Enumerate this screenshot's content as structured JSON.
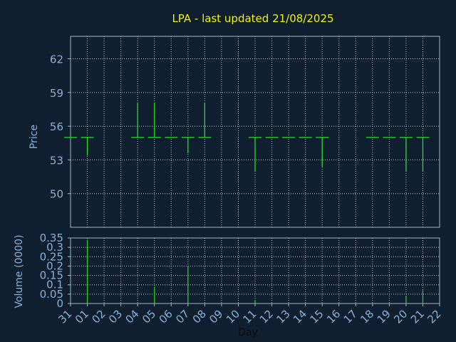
{
  "title": "LPA - last updated 21/08/2025",
  "colors": {
    "background": "#0f1f30",
    "title": "#f2f200",
    "mark": "#22dd22",
    "tick": "#8ab0d6"
  },
  "chart_data": [
    {
      "type": "candlestick",
      "ylabel": "Price",
      "ylim": [
        47,
        64
      ],
      "yticks": [
        "50",
        "53",
        "56",
        "59",
        "62"
      ],
      "x": [
        "31",
        "01",
        "02",
        "03",
        "04",
        "05",
        "06",
        "07",
        "08",
        "09",
        "10",
        "11",
        "12",
        "13",
        "14",
        "15",
        "16",
        "17",
        "18",
        "19",
        "20",
        "21",
        "22"
      ],
      "points": [
        {
          "day": "31",
          "open": 55,
          "high": 55,
          "low": 55,
          "close": 55
        },
        {
          "day": "01",
          "open": 55,
          "high": 55,
          "low": 53.4,
          "close": 55
        },
        {
          "day": "04",
          "open": 55,
          "high": 58.1,
          "low": 55,
          "close": 55
        },
        {
          "day": "05",
          "open": 55,
          "high": 58.1,
          "low": 55,
          "close": 55
        },
        {
          "day": "06",
          "open": 55,
          "high": 55,
          "low": 55,
          "close": 55
        },
        {
          "day": "07",
          "open": 55,
          "high": 55,
          "low": 53.6,
          "close": 55
        },
        {
          "day": "08",
          "open": 55,
          "high": 58.1,
          "low": 55,
          "close": 55
        },
        {
          "day": "11",
          "open": 55,
          "high": 55,
          "low": 52,
          "close": 55
        },
        {
          "day": "12",
          "open": 55,
          "high": 55,
          "low": 55,
          "close": 55
        },
        {
          "day": "13",
          "open": 55,
          "high": 55,
          "low": 55,
          "close": 55
        },
        {
          "day": "14",
          "open": 55,
          "high": 55,
          "low": 55,
          "close": 55
        },
        {
          "day": "15",
          "open": 55,
          "high": 55,
          "low": 52.4,
          "close": 55
        },
        {
          "day": "18",
          "open": 55,
          "high": 55,
          "low": 55,
          "close": 55
        },
        {
          "day": "19",
          "open": 55,
          "high": 55,
          "low": 55,
          "close": 55
        },
        {
          "day": "20",
          "open": 55,
          "high": 55,
          "low": 52,
          "close": 55
        },
        {
          "day": "21",
          "open": 55,
          "high": 55,
          "low": 52,
          "close": 55
        }
      ],
      "grid": true
    },
    {
      "type": "bar",
      "ylabel": "Volume (0000)",
      "xlabel": "Day",
      "ylim": [
        0,
        0.35
      ],
      "yticks": [
        "0",
        "0.05",
        "0.1",
        "0.15",
        "0.2",
        "0.25",
        "0.3",
        "0.35"
      ],
      "x": [
        "31",
        "01",
        "02",
        "03",
        "04",
        "05",
        "06",
        "07",
        "08",
        "09",
        "10",
        "11",
        "12",
        "13",
        "14",
        "15",
        "16",
        "17",
        "18",
        "19",
        "20",
        "21",
        "22"
      ],
      "values": [
        {
          "day": "01",
          "volume": 0.34
        },
        {
          "day": "05",
          "volume": 0.09
        },
        {
          "day": "07",
          "volume": 0.2
        },
        {
          "day": "11",
          "volume": 0.02
        },
        {
          "day": "20",
          "volume": 0.04
        },
        {
          "day": "21",
          "volume": 0.07
        }
      ],
      "grid": true
    }
  ]
}
